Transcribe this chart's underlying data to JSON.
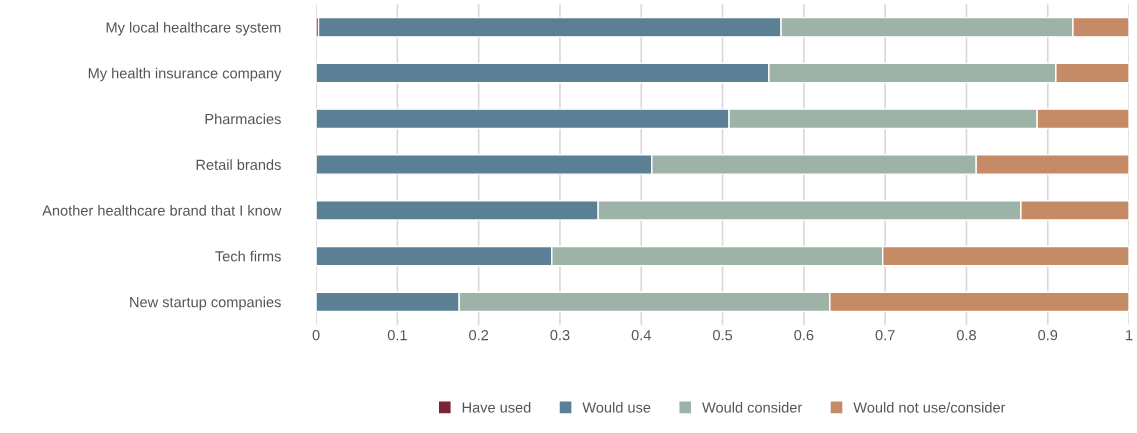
{
  "chart_data": {
    "type": "bar",
    "orientation": "horizontal",
    "stacked": true,
    "categories": [
      "My local healthcare system",
      "My health insurance company",
      "Pharmacies",
      "Retail brands",
      "Another healthcare brand that I know",
      "Tech firms",
      "New startup companies"
    ],
    "series": [
      {
        "name": "Have used",
        "color": "#7b2435",
        "values": [
          0.003,
          0,
          0,
          0,
          0,
          0,
          0
        ]
      },
      {
        "name": "Would use",
        "color": "#5b7f95",
        "values": [
          0.569,
          0.557,
          0.508,
          0.413,
          0.347,
          0.29,
          0.176
        ]
      },
      {
        "name": "Would consider",
        "color": "#9db3a8",
        "values": [
          0.359,
          0.353,
          0.379,
          0.399,
          0.52,
          0.407,
          0.456
        ]
      },
      {
        "name": "Would not use/consider",
        "color": "#c58a66",
        "values": [
          0.069,
          0.09,
          0.113,
          0.188,
          0.133,
          0.303,
          0.368
        ]
      }
    ],
    "xlim": [
      0,
      1
    ],
    "xticks": [
      0,
      0.1,
      0.2,
      0.3,
      0.4,
      0.5,
      0.6,
      0.7,
      0.8,
      0.9,
      1
    ],
    "grid": "x",
    "legend": "bottom"
  }
}
